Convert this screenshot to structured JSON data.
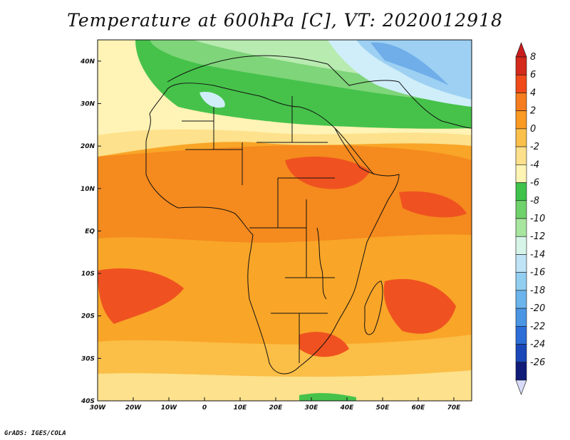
{
  "title": "Temperature at 600hPa [C], VT: 2020012918",
  "credit": "GrADS: IGES/COLA",
  "map": {
    "lon_range": [
      -30,
      75
    ],
    "lat_range": [
      -40,
      45
    ],
    "lon_ticks": [
      {
        "value": -30,
        "label": "30W"
      },
      {
        "value": -20,
        "label": "20W"
      },
      {
        "value": -10,
        "label": "10W"
      },
      {
        "value": 0,
        "label": "0"
      },
      {
        "value": 10,
        "label": "10E"
      },
      {
        "value": 20,
        "label": "20E"
      },
      {
        "value": 30,
        "label": "30E"
      },
      {
        "value": 40,
        "label": "40E"
      },
      {
        "value": 50,
        "label": "50E"
      },
      {
        "value": 60,
        "label": "60E"
      },
      {
        "value": 70,
        "label": "70E"
      }
    ],
    "lat_ticks": [
      {
        "value": 40,
        "label": "40N"
      },
      {
        "value": 30,
        "label": "30N"
      },
      {
        "value": 20,
        "label": "20N"
      },
      {
        "value": 10,
        "label": "10N"
      },
      {
        "value": 0,
        "label": "EQ"
      },
      {
        "value": -10,
        "label": "10S"
      },
      {
        "value": -20,
        "label": "20S"
      },
      {
        "value": -30,
        "label": "30S"
      },
      {
        "value": -40,
        "label": "40S"
      }
    ]
  },
  "colorbar": {
    "levels": [
      {
        "label": "8",
        "color": "#d42a1c"
      },
      {
        "label": "6",
        "color": "#f04a1a"
      },
      {
        "label": "4",
        "color": "#f57d1f"
      },
      {
        "label": "2",
        "color": "#f99a22"
      },
      {
        "label": "0",
        "color": "#fbc04a"
      },
      {
        "label": "-2",
        "color": "#fde08c"
      },
      {
        "label": "-4",
        "color": "#fff4b4"
      },
      {
        "label": "-6",
        "color": "#3fc34a"
      },
      {
        "label": "-8",
        "color": "#70d26a"
      },
      {
        "label": "-10",
        "color": "#a8e6a0"
      },
      {
        "label": "-12",
        "color": "#d6f4e8"
      },
      {
        "label": "-14",
        "color": "#bfe4f6"
      },
      {
        "label": "-16",
        "color": "#92cef0"
      },
      {
        "label": "-18",
        "color": "#6cb4ec"
      },
      {
        "label": "-20",
        "color": "#4a96e4"
      },
      {
        "label": "-22",
        "color": "#2c6ed8"
      },
      {
        "label": "-24",
        "color": "#1a48b8"
      },
      {
        "label": "-26",
        "color": "#101c78"
      }
    ],
    "over_color": "#c81e1e",
    "under_color": "#d8dcf8"
  },
  "colors": {
    "warmest": "#ef5220",
    "warm": "#f58a1e",
    "mild": "#f9a528",
    "cool_orange": "#fbbe46",
    "pale": "#fde18c",
    "cream": "#fff3b5",
    "green": "#46c24a",
    "light_green": "#7fd57a",
    "pale_green": "#b8ebb0",
    "ice": "#cfeefa",
    "light_blue": "#9dd0f2",
    "blue": "#6faee9",
    "coast": "#111111"
  }
}
